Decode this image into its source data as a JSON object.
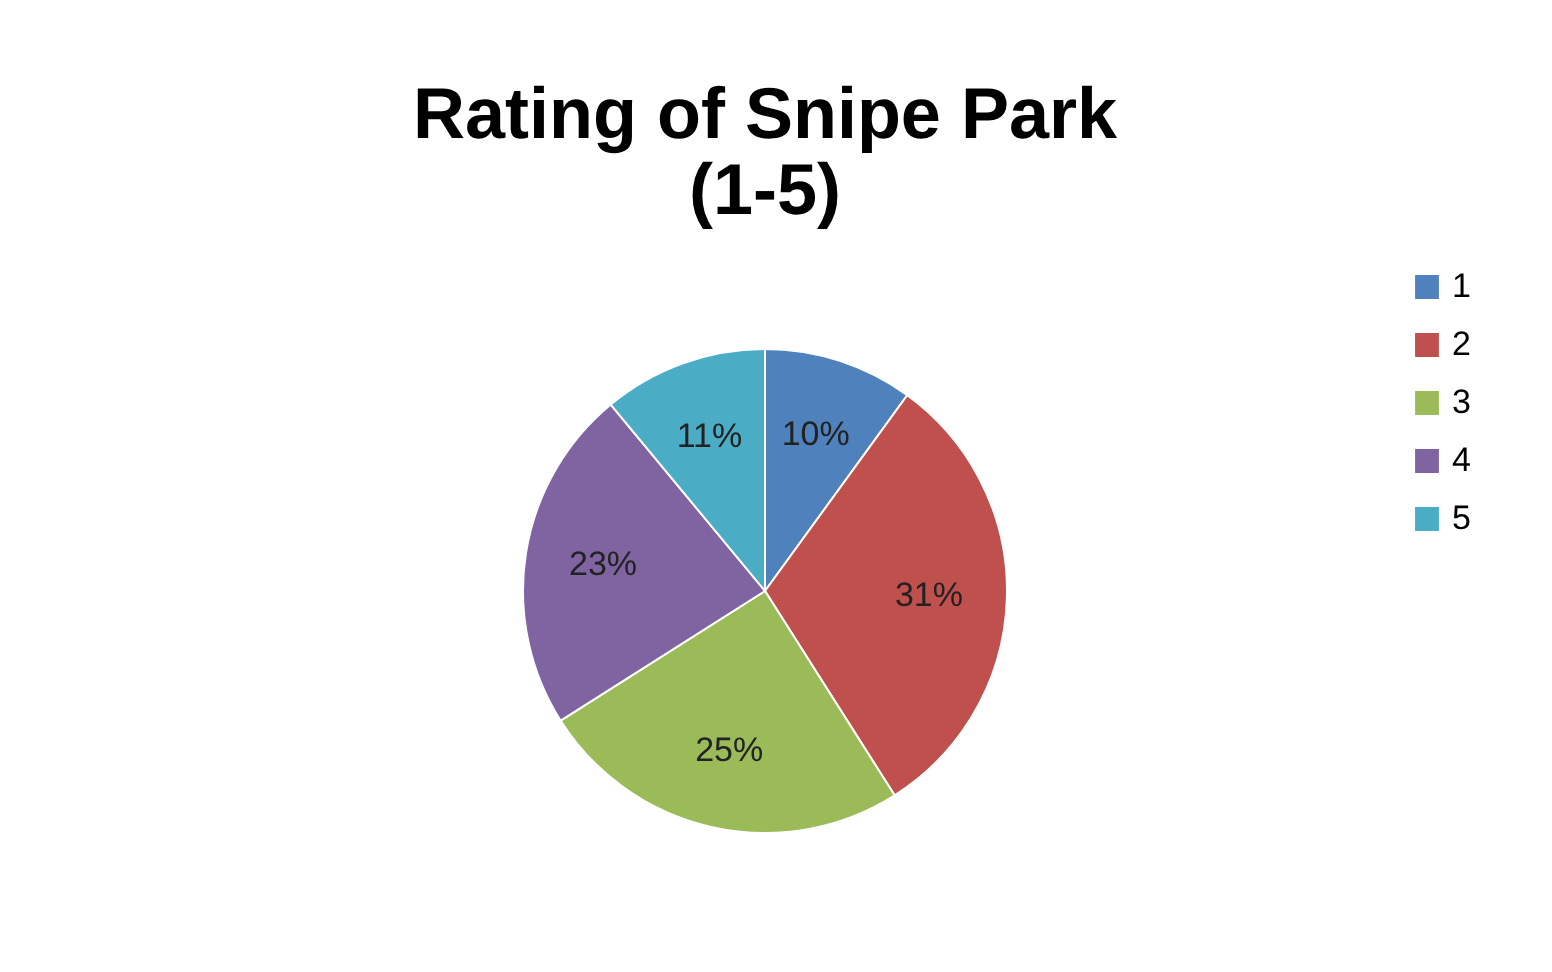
{
  "chart_data": {
    "type": "pie",
    "title": "Rating of Snipe Park\n(1-5)",
    "categories": [
      "1",
      "2",
      "3",
      "4",
      "5"
    ],
    "values": [
      10,
      31,
      25,
      23,
      11
    ],
    "colors": [
      "#4f81bd",
      "#c0504d",
      "#9bbb59",
      "#8064a2",
      "#4bacc6"
    ],
    "value_labels": [
      "10%",
      "31%",
      "25%",
      "23%",
      "11%"
    ],
    "legend": "right"
  }
}
